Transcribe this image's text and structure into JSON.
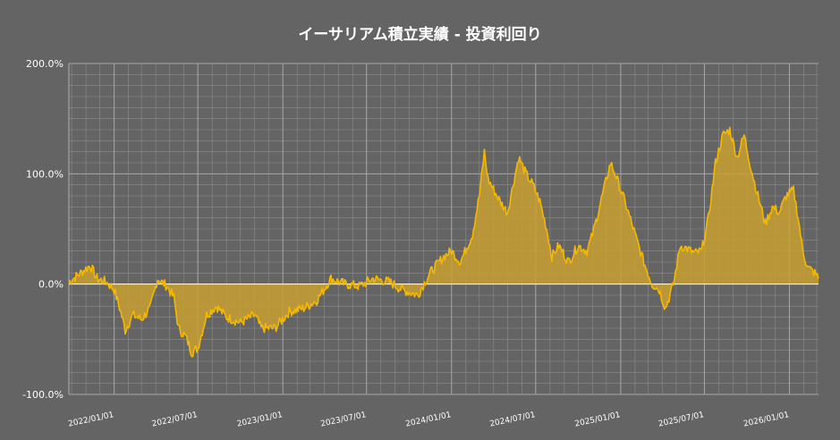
{
  "chart_data": {
    "type": "area",
    "title": "イーサリアム積立実績 - 投資利回り",
    "xlabel": "",
    "ylabel": "",
    "y_unit": "%",
    "ylim": [
      -100,
      200
    ],
    "y_ticks": [
      {
        "value": 200,
        "label": "200.0%"
      },
      {
        "value": 100,
        "label": "100.0%"
      },
      {
        "value": 0,
        "label": "0.0%"
      },
      {
        "value": -100,
        "label": "-100.0%"
      }
    ],
    "x_range": [
      "2021-09-25",
      "2026-03-05"
    ],
    "x_ticks": [
      {
        "date": "2022-01-01",
        "label": "2022/01/01"
      },
      {
        "date": "2022-07-01",
        "label": "2022/07/01"
      },
      {
        "date": "2023-01-01",
        "label": "2023/01/01"
      },
      {
        "date": "2023-07-01",
        "label": "2023/07/01"
      },
      {
        "date": "2024-01-01",
        "label": "2024/01/01"
      },
      {
        "date": "2024-07-01",
        "label": "2024/07/01"
      },
      {
        "date": "2025-01-01",
        "label": "2025/01/01"
      },
      {
        "date": "2025-07-01",
        "label": "2025/07/01"
      },
      {
        "date": "2026-01-01",
        "label": "2026/01/01"
      }
    ],
    "grid": true,
    "colors": {
      "background": "#646464",
      "grid": "#8c8c8c",
      "line": "#f5b800",
      "fill": "#c8a030"
    },
    "series": [
      {
        "name": "",
        "points": [
          [
            "2021-09-25",
            2
          ],
          [
            "2021-10-20",
            10
          ],
          [
            "2021-11-10",
            17
          ],
          [
            "2021-11-25",
            5
          ],
          [
            "2021-12-15",
            2
          ],
          [
            "2022-01-01",
            -5
          ],
          [
            "2022-01-15",
            -25
          ],
          [
            "2022-01-25",
            -42
          ],
          [
            "2022-02-10",
            -28
          ],
          [
            "2022-03-01",
            -32
          ],
          [
            "2022-03-20",
            -22
          ],
          [
            "2022-04-05",
            5
          ],
          [
            "2022-04-25",
            -2
          ],
          [
            "2022-05-10",
            -12
          ],
          [
            "2022-05-20",
            -40
          ],
          [
            "2022-06-05",
            -48
          ],
          [
            "2022-06-18",
            -62
          ],
          [
            "2022-07-01",
            -58
          ],
          [
            "2022-07-20",
            -28
          ],
          [
            "2022-08-10",
            -20
          ],
          [
            "2022-09-01",
            -30
          ],
          [
            "2022-10-01",
            -35
          ],
          [
            "2022-11-01",
            -28
          ],
          [
            "2022-11-15",
            -40
          ],
          [
            "2022-12-15",
            -40
          ],
          [
            "2023-01-15",
            -25
          ],
          [
            "2023-02-15",
            -22
          ],
          [
            "2023-03-15",
            -15
          ],
          [
            "2023-04-15",
            5
          ],
          [
            "2023-05-15",
            0
          ],
          [
            "2023-06-15",
            -2
          ],
          [
            "2023-07-15",
            5
          ],
          [
            "2023-08-20",
            2
          ],
          [
            "2023-09-15",
            -5
          ],
          [
            "2023-10-20",
            -10
          ],
          [
            "2023-11-15",
            10
          ],
          [
            "2023-12-15",
            25
          ],
          [
            "2024-01-01",
            30
          ],
          [
            "2024-01-20",
            20
          ],
          [
            "2024-02-15",
            45
          ],
          [
            "2024-03-01",
            80
          ],
          [
            "2024-03-12",
            120
          ],
          [
            "2024-03-20",
            95
          ],
          [
            "2024-04-15",
            75
          ],
          [
            "2024-05-01",
            65
          ],
          [
            "2024-05-25",
            115
          ],
          [
            "2024-06-10",
            100
          ],
          [
            "2024-06-25",
            90
          ],
          [
            "2024-07-10",
            75
          ],
          [
            "2024-07-25",
            50
          ],
          [
            "2024-08-05",
            25
          ],
          [
            "2024-08-20",
            35
          ],
          [
            "2024-09-10",
            20
          ],
          [
            "2024-10-01",
            35
          ],
          [
            "2024-10-20",
            30
          ],
          [
            "2024-11-01",
            45
          ],
          [
            "2024-11-25",
            85
          ],
          [
            "2024-12-10",
            110
          ],
          [
            "2024-12-20",
            100
          ],
          [
            "2025-01-10",
            75
          ],
          [
            "2025-02-01",
            45
          ],
          [
            "2025-02-20",
            20
          ],
          [
            "2025-03-10",
            0
          ],
          [
            "2025-03-25",
            -5
          ],
          [
            "2025-04-08",
            -22
          ],
          [
            "2025-04-25",
            0
          ],
          [
            "2025-05-10",
            35
          ],
          [
            "2025-05-25",
            32
          ],
          [
            "2025-06-10",
            28
          ],
          [
            "2025-06-25",
            30
          ],
          [
            "2025-07-10",
            60
          ],
          [
            "2025-07-25",
            110
          ],
          [
            "2025-08-10",
            135
          ],
          [
            "2025-08-25",
            140
          ],
          [
            "2025-09-10",
            115
          ],
          [
            "2025-09-25",
            135
          ],
          [
            "2025-10-10",
            105
          ],
          [
            "2025-10-25",
            80
          ],
          [
            "2025-11-10",
            55
          ],
          [
            "2025-11-25",
            70
          ],
          [
            "2025-12-10",
            65
          ],
          [
            "2025-12-25",
            80
          ],
          [
            "2026-01-10",
            85
          ],
          [
            "2026-01-20",
            60
          ],
          [
            "2026-01-30",
            30
          ],
          [
            "2026-02-10",
            15
          ],
          [
            "2026-02-25",
            10
          ],
          [
            "2026-03-05",
            5
          ]
        ]
      }
    ]
  }
}
